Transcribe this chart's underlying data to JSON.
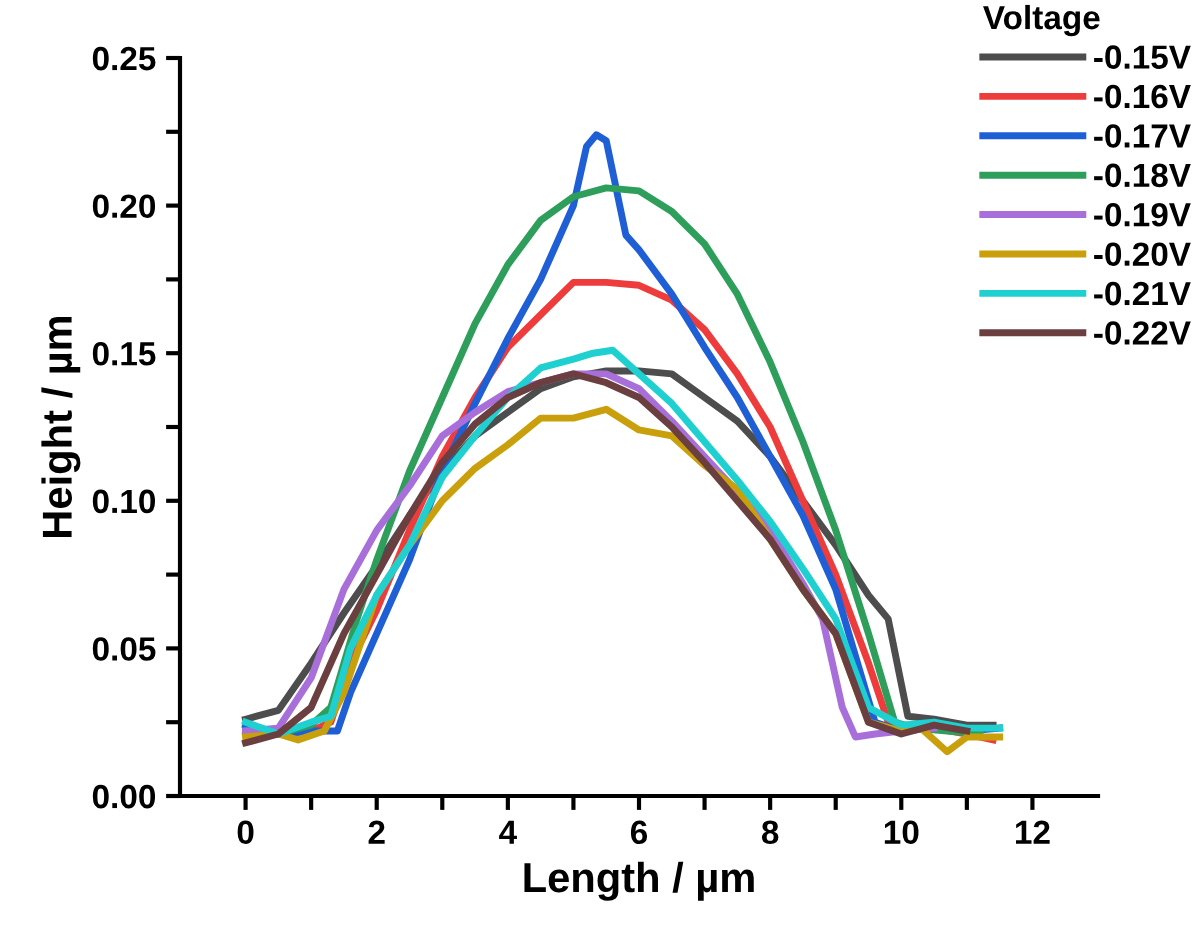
{
  "chart_data": {
    "type": "line",
    "xlabel": "Length / µm",
    "ylabel": "Height / µm",
    "legend_title": "Voltage",
    "legend": "top right",
    "grid": false,
    "marker": "none",
    "line_style": "solid",
    "xlim": [
      -1,
      13
    ],
    "ylim": [
      0,
      0.25
    ],
    "xticks": [
      0,
      {
        "value": 1,
        "label": null
      },
      2,
      {
        "value": 3,
        "label": null
      },
      4,
      {
        "value": 5,
        "label": null
      },
      6,
      {
        "value": 7,
        "label": null
      },
      8,
      {
        "value": 9,
        "label": null
      },
      10,
      {
        "value": 11,
        "label": null
      },
      12
    ],
    "yticks": [
      {
        "value": 0,
        "label": "0.00"
      },
      {
        "value": 0.025,
        "label": null
      },
      {
        "value": 0.05,
        "label": "0.05"
      },
      {
        "value": 0.075,
        "label": null
      },
      {
        "value": 0.1,
        "label": "0.10"
      },
      {
        "value": 0.125,
        "label": null
      },
      {
        "value": 0.15,
        "label": "0.15"
      },
      {
        "value": 0.175,
        "label": null
      },
      {
        "value": 0.2,
        "label": "0.20"
      },
      {
        "value": 0.225,
        "label": null
      },
      {
        "value": 0.25,
        "label": "0.25"
      }
    ],
    "series": [
      {
        "name": "-0.15V",
        "color": "#4d4d4d",
        "x": [
          0,
          0.5,
          1,
          1.5,
          2,
          2.5,
          3,
          3.5,
          4,
          4.5,
          5,
          5.5,
          6,
          6.5,
          7,
          7.5,
          8,
          8.5,
          9,
          9.5,
          9.8,
          10.1,
          10.5,
          11,
          11.4
        ],
        "values": [
          0.026,
          0.029,
          0.045,
          0.062,
          0.078,
          0.095,
          0.11,
          0.122,
          0.13,
          0.138,
          0.142,
          0.144,
          0.144,
          0.143,
          0.135,
          0.127,
          0.115,
          0.1,
          0.085,
          0.068,
          0.06,
          0.027,
          0.026,
          0.024,
          0.024
        ]
      },
      {
        "name": "-0.16V",
        "color": "#ee3b3b",
        "x": [
          0,
          0.5,
          1,
          1.3,
          1.6,
          2,
          2.5,
          3,
          3.5,
          4,
          4.5,
          5,
          5.5,
          6,
          6.5,
          7,
          7.5,
          8,
          8.5,
          9,
          9.5,
          9.8,
          10,
          10.5,
          11,
          11.4
        ],
        "values": [
          0.022,
          0.021,
          0.022,
          0.025,
          0.045,
          0.063,
          0.09,
          0.115,
          0.135,
          0.152,
          0.163,
          0.174,
          0.174,
          0.173,
          0.168,
          0.158,
          0.143,
          0.125,
          0.1,
          0.075,
          0.045,
          0.025,
          0.022,
          0.023,
          0.021,
          0.019
        ]
      },
      {
        "name": "-0.17V",
        "color": "#1f5fd6",
        "x": [
          0,
          0.5,
          1,
          1.4,
          1.6,
          2,
          2.5,
          3,
          3.5,
          4,
          4.5,
          5,
          5.2,
          5.35,
          5.5,
          5.8,
          6,
          6.5,
          7,
          7.5,
          8,
          8.5,
          9,
          9.4,
          9.6,
          10,
          10.5,
          11,
          11.5
        ],
        "values": [
          0.024,
          0.021,
          0.022,
          0.022,
          0.035,
          0.055,
          0.08,
          0.11,
          0.133,
          0.155,
          0.175,
          0.2,
          0.22,
          0.224,
          0.222,
          0.19,
          0.185,
          0.17,
          0.152,
          0.135,
          0.115,
          0.095,
          0.07,
          0.04,
          0.025,
          0.022,
          0.025,
          0.022,
          0.023
        ]
      },
      {
        "name": "-0.18V",
        "color": "#2e9e5b",
        "x": [
          0,
          0.5,
          1,
          1.3,
          1.7,
          2,
          2.5,
          3,
          3.5,
          4,
          4.5,
          5,
          5.5,
          6,
          6.5,
          7,
          7.5,
          8,
          8.5,
          9,
          9.5,
          9.9,
          10.2,
          10.7,
          11.2
        ],
        "values": [
          0.022,
          0.021,
          0.024,
          0.03,
          0.06,
          0.08,
          0.11,
          0.135,
          0.16,
          0.18,
          0.195,
          0.203,
          0.206,
          0.205,
          0.198,
          0.187,
          0.17,
          0.147,
          0.12,
          0.09,
          0.055,
          0.025,
          0.023,
          0.022,
          0.021
        ]
      },
      {
        "name": "-0.19V",
        "color": "#a86fdb",
        "x": [
          0,
          0.5,
          1,
          1.5,
          2,
          2.5,
          3,
          3.5,
          4,
          4.5,
          5,
          5.5,
          6,
          6.5,
          7,
          7.5,
          8,
          8.5,
          8.8,
          9.1,
          9.3,
          9.6,
          10,
          10.5
        ],
        "values": [
          0.022,
          0.023,
          0.04,
          0.07,
          0.09,
          0.105,
          0.122,
          0.13,
          0.137,
          0.14,
          0.143,
          0.143,
          0.138,
          0.127,
          0.115,
          0.103,
          0.09,
          0.072,
          0.06,
          0.03,
          0.02,
          0.021,
          0.022,
          0.023
        ]
      },
      {
        "name": "-0.20V",
        "color": "#c9a00c",
        "x": [
          0,
          0.5,
          0.8,
          1.2,
          1.5,
          2,
          2.5,
          3,
          3.5,
          4,
          4.5,
          5,
          5.5,
          6,
          6.5,
          7,
          7.5,
          8,
          8.5,
          9,
          9.5,
          10,
          10.3,
          10.7,
          11,
          11.5
        ],
        "values": [
          0.02,
          0.021,
          0.019,
          0.022,
          0.035,
          0.068,
          0.085,
          0.1,
          0.111,
          0.119,
          0.128,
          0.128,
          0.131,
          0.124,
          0.122,
          0.112,
          0.104,
          0.087,
          0.07,
          0.055,
          0.025,
          0.022,
          0.023,
          0.015,
          0.02,
          0.02
        ]
      },
      {
        "name": "-0.21V",
        "color": "#1fd0d0",
        "x": [
          0,
          0.5,
          1,
          1.3,
          1.6,
          2,
          2.5,
          3,
          3.5,
          4,
          4.5,
          5,
          5.3,
          5.6,
          6,
          6.5,
          7,
          7.5,
          8,
          8.5,
          9,
          9.5,
          10,
          10.5,
          11,
          11.5
        ],
        "values": [
          0.025,
          0.021,
          0.025,
          0.027,
          0.05,
          0.068,
          0.085,
          0.108,
          0.122,
          0.135,
          0.145,
          0.148,
          0.15,
          0.151,
          0.143,
          0.133,
          0.12,
          0.107,
          0.093,
          0.077,
          0.06,
          0.03,
          0.024,
          0.025,
          0.023,
          0.023
        ]
      },
      {
        "name": "-0.22V",
        "color": "#6b3f3f",
        "x": [
          0,
          0.5,
          1,
          1.5,
          2,
          2.5,
          3,
          3.5,
          4,
          4.5,
          5,
          5.5,
          6,
          6.5,
          7,
          7.5,
          8,
          8.5,
          9,
          9.5,
          10,
          10.5,
          11
        ],
        "values": [
          0.018,
          0.021,
          0.03,
          0.055,
          0.075,
          0.095,
          0.113,
          0.126,
          0.135,
          0.14,
          0.143,
          0.14,
          0.135,
          0.125,
          0.113,
          0.1,
          0.087,
          0.07,
          0.055,
          0.025,
          0.021,
          0.024,
          0.022
        ]
      }
    ]
  }
}
